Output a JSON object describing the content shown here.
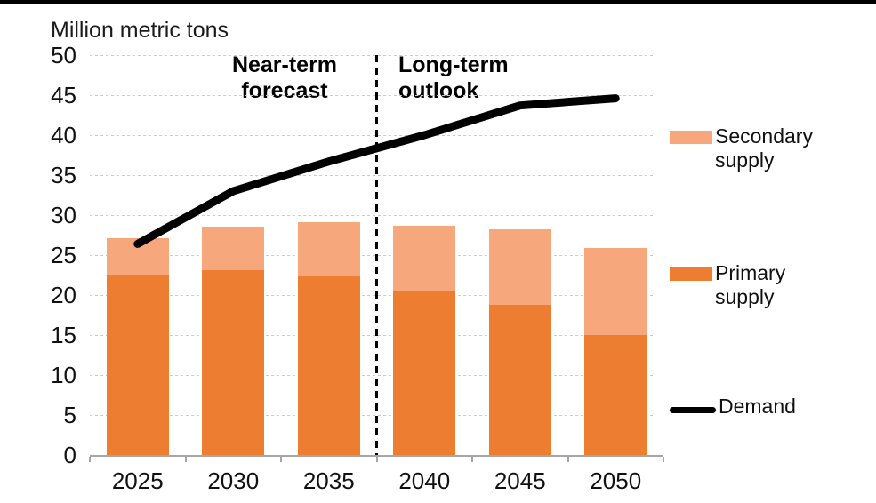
{
  "chart_data": {
    "type": "bar",
    "subtype": "stacked-bars-with-line",
    "title": "Million metric tons",
    "xlabel": "",
    "ylabel": "Million metric tons",
    "categories": [
      "2025",
      "2030",
      "2035",
      "2040",
      "2045",
      "2050"
    ],
    "series": [
      {
        "name": "Primary supply",
        "type": "bar",
        "stack": "supply",
        "color": "#ED7D31",
        "values": [
          22.5,
          23.1,
          22.3,
          20.6,
          18.8,
          15.0
        ]
      },
      {
        "name": "Secondary supply",
        "type": "bar",
        "stack": "supply",
        "color": "#F6A77C",
        "values": [
          4.6,
          5.5,
          6.8,
          8.1,
          9.4,
          10.9
        ]
      },
      {
        "name": "Demand",
        "type": "line",
        "color": "#000000",
        "values": [
          26.4,
          33.0,
          36.7,
          40.0,
          43.7,
          44.6
        ]
      }
    ],
    "stack_totals": [
      27.1,
      28.6,
      29.1,
      28.7,
      28.2,
      25.9
    ],
    "ylim": [
      0,
      50
    ],
    "yticks": [
      0,
      5,
      10,
      15,
      20,
      25,
      30,
      35,
      40,
      45,
      50
    ],
    "grid": "horizontal-dotted",
    "legend_position": "right",
    "divider": {
      "style": "dashed-vertical",
      "color": "#000000",
      "after_category_index": 2
    },
    "annotations": [
      {
        "line1": "Near-term",
        "line2": "forecast",
        "side": "left-of-divider"
      },
      {
        "line1": "Long-term",
        "line2": "outlook",
        "side": "right-of-divider"
      }
    ]
  },
  "legend": {
    "items": [
      {
        "label": "Secondary supply",
        "swatch": "rect",
        "color": "#F6A77C"
      },
      {
        "label": "Primary supply",
        "swatch": "rect",
        "color": "#ED7D31"
      },
      {
        "label": "Demand",
        "swatch": "line",
        "color": "#000000"
      }
    ]
  },
  "colors": {
    "background": "#FFFFFF",
    "top_rule": "#000000",
    "gridline": "#C9C9C9",
    "axis": "#A6A6A6",
    "text": "#111111"
  }
}
